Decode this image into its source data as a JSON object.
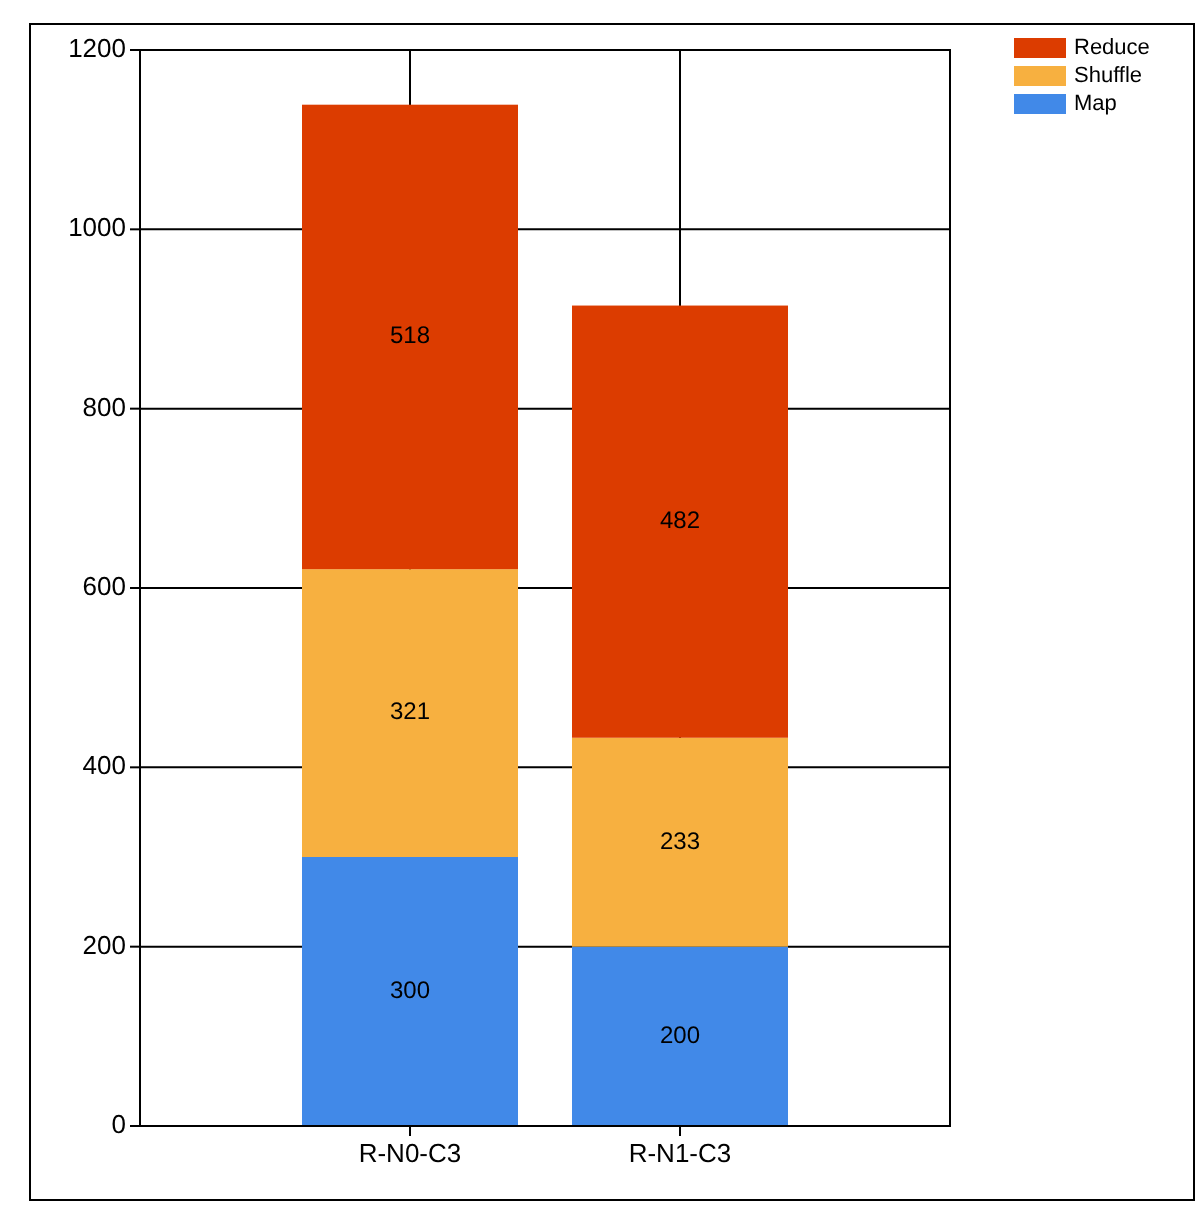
{
  "chart_data": {
    "type": "bar",
    "stacked": true,
    "categories": [
      "R-N0-C3",
      "R-N1-C3"
    ],
    "series": [
      {
        "name": "Map",
        "color": "#4189e8",
        "values": [
          300,
          200
        ]
      },
      {
        "name": "Shuffle",
        "color": "#f7b040",
        "values": [
          321,
          233
        ]
      },
      {
        "name": "Reduce",
        "color": "#dc3c00",
        "values": [
          518,
          482
        ]
      }
    ],
    "ylim": [
      0,
      1200
    ],
    "yticks": [
      0,
      200,
      400,
      600,
      800,
      1000,
      1200
    ],
    "grid": true,
    "legend": "top right",
    "data_labels": true
  }
}
